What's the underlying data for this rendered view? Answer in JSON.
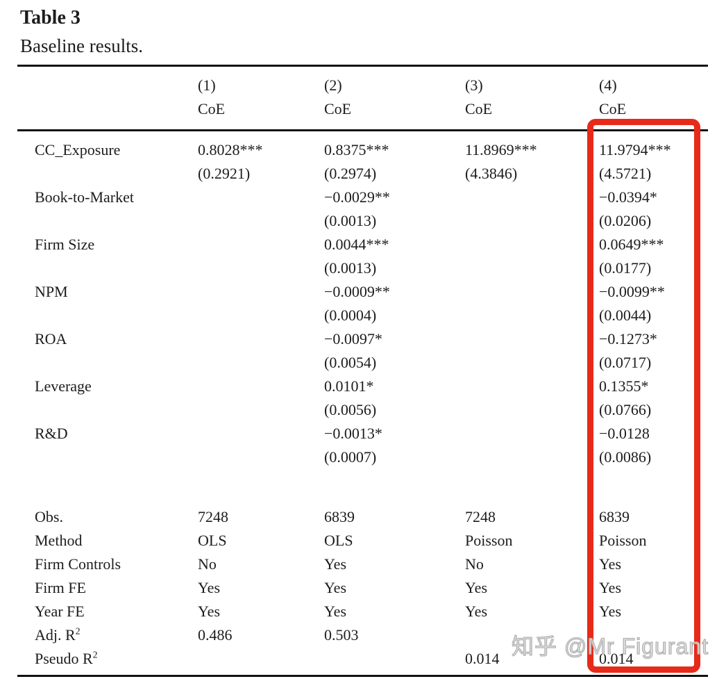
{
  "title": "Table 3",
  "subtitle": "Baseline results.",
  "header": {
    "model_numbers": [
      "(1)",
      "(2)",
      "(3)",
      "(4)"
    ],
    "dep_var_labels": [
      "CoE",
      "CoE",
      "CoE",
      "CoE"
    ]
  },
  "body_rows": [
    {
      "label": "CC_Exposure",
      "cells": [
        "0.8028***",
        "0.8375***",
        "11.8969***",
        "11.9794***"
      ]
    },
    {
      "label": "",
      "cells": [
        "(0.2921)",
        "(0.2974)",
        "(4.3846)",
        "(4.5721)"
      ]
    },
    {
      "label": "Book-to-Market",
      "cells": [
        "",
        "−0.0029**",
        "",
        "−0.0394*"
      ]
    },
    {
      "label": "",
      "cells": [
        "",
        "(0.0013)",
        "",
        "(0.0206)"
      ]
    },
    {
      "label": "Firm Size",
      "cells": [
        "",
        "0.0044***",
        "",
        "0.0649***"
      ]
    },
    {
      "label": "",
      "cells": [
        "",
        "(0.0013)",
        "",
        "(0.0177)"
      ]
    },
    {
      "label": "NPM",
      "cells": [
        "",
        "−0.0009**",
        "",
        "−0.0099**"
      ]
    },
    {
      "label": "",
      "cells": [
        "",
        "(0.0004)",
        "",
        "(0.0044)"
      ]
    },
    {
      "label": "ROA",
      "cells": [
        "",
        "−0.0097*",
        "",
        "−0.1273*"
      ]
    },
    {
      "label": "",
      "cells": [
        "",
        "(0.0054)",
        "",
        "(0.0717)"
      ]
    },
    {
      "label": "Leverage",
      "cells": [
        "",
        "0.0101*",
        "",
        "0.1355*"
      ]
    },
    {
      "label": "",
      "cells": [
        "",
        "(0.0056)",
        "",
        "(0.0766)"
      ]
    },
    {
      "label": "R&D",
      "cells": [
        "",
        "−0.0013*",
        "",
        "−0.0128"
      ]
    },
    {
      "label": "",
      "cells": [
        "",
        "(0.0007)",
        "",
        "(0.0086)"
      ]
    }
  ],
  "stats_rows": [
    {
      "label": "Obs.",
      "cells": [
        "7248",
        "6839",
        "7248",
        "6839"
      ]
    },
    {
      "label": "Method",
      "cells": [
        "OLS",
        "OLS",
        "Poisson",
        "Poisson"
      ]
    },
    {
      "label": "Firm Controls",
      "cells": [
        "No",
        "Yes",
        "No",
        "Yes"
      ]
    },
    {
      "label": "Firm FE",
      "cells": [
        "Yes",
        "Yes",
        "Yes",
        "Yes"
      ]
    },
    {
      "label": "Year FE",
      "cells": [
        "Yes",
        "Yes",
        "Yes",
        "Yes"
      ]
    },
    {
      "label": "Adj. R",
      "label_sup": "2",
      "cells": [
        "0.486",
        "0.503",
        "",
        ""
      ]
    },
    {
      "label": "Pseudo R",
      "label_sup": "2",
      "cells": [
        "",
        "",
        "0.014",
        "0.014"
      ]
    }
  ],
  "highlight": {
    "column_index": 3,
    "color": "#e72a1a"
  },
  "watermark": "知乎 @Mr Figurant"
}
